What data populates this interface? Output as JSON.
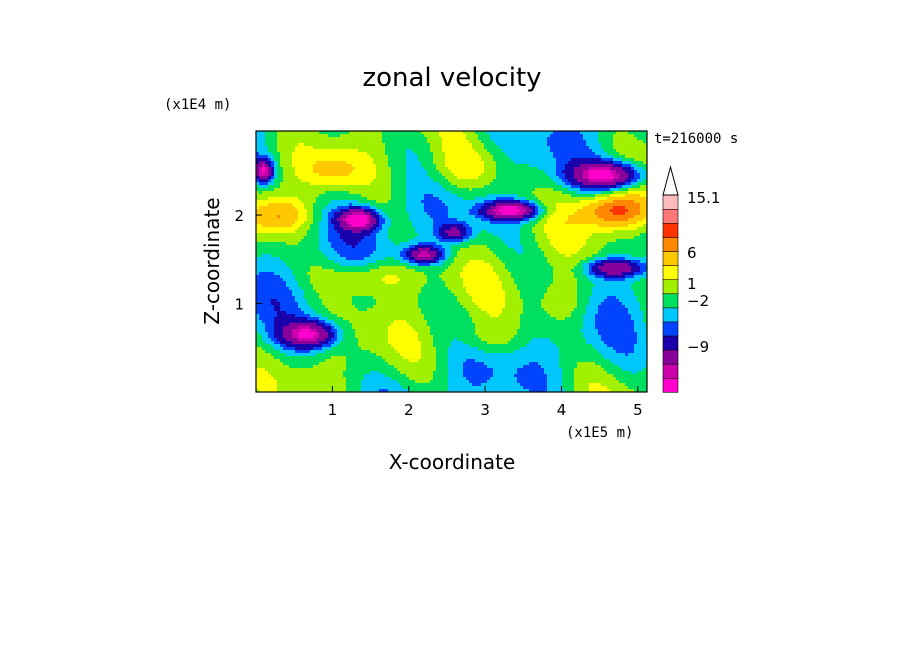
{
  "chart_data": {
    "type": "heatmap",
    "title": "zonal velocity",
    "xlabel": "X-coordinate",
    "ylabel": "Z-coordinate",
    "x_multiplier": "(x1E5 m)",
    "y_multiplier": "(x1E4 m)",
    "time_label": "t=216000 s",
    "xlim": [
      0,
      5.12
    ],
    "ylim": [
      0,
      2.95
    ],
    "x_ticks": [
      "1",
      "2",
      "3",
      "4",
      "5"
    ],
    "y_ticks": [
      "1",
      "2"
    ],
    "colorbar": {
      "colors": [
        "#ff00cc",
        "#cc00aa",
        "#880099",
        "#1a00aa",
        "#0044ff",
        "#00c8ff",
        "#00e060",
        "#a0f000",
        "#ffff00",
        "#ffc800",
        "#ff8800",
        "#ff3300",
        "#ff7777",
        "#ffbbbb"
      ],
      "labels": [
        "15.1",
        "6",
        "1",
        "-2",
        "-9"
      ],
      "extend_top": true
    }
  }
}
